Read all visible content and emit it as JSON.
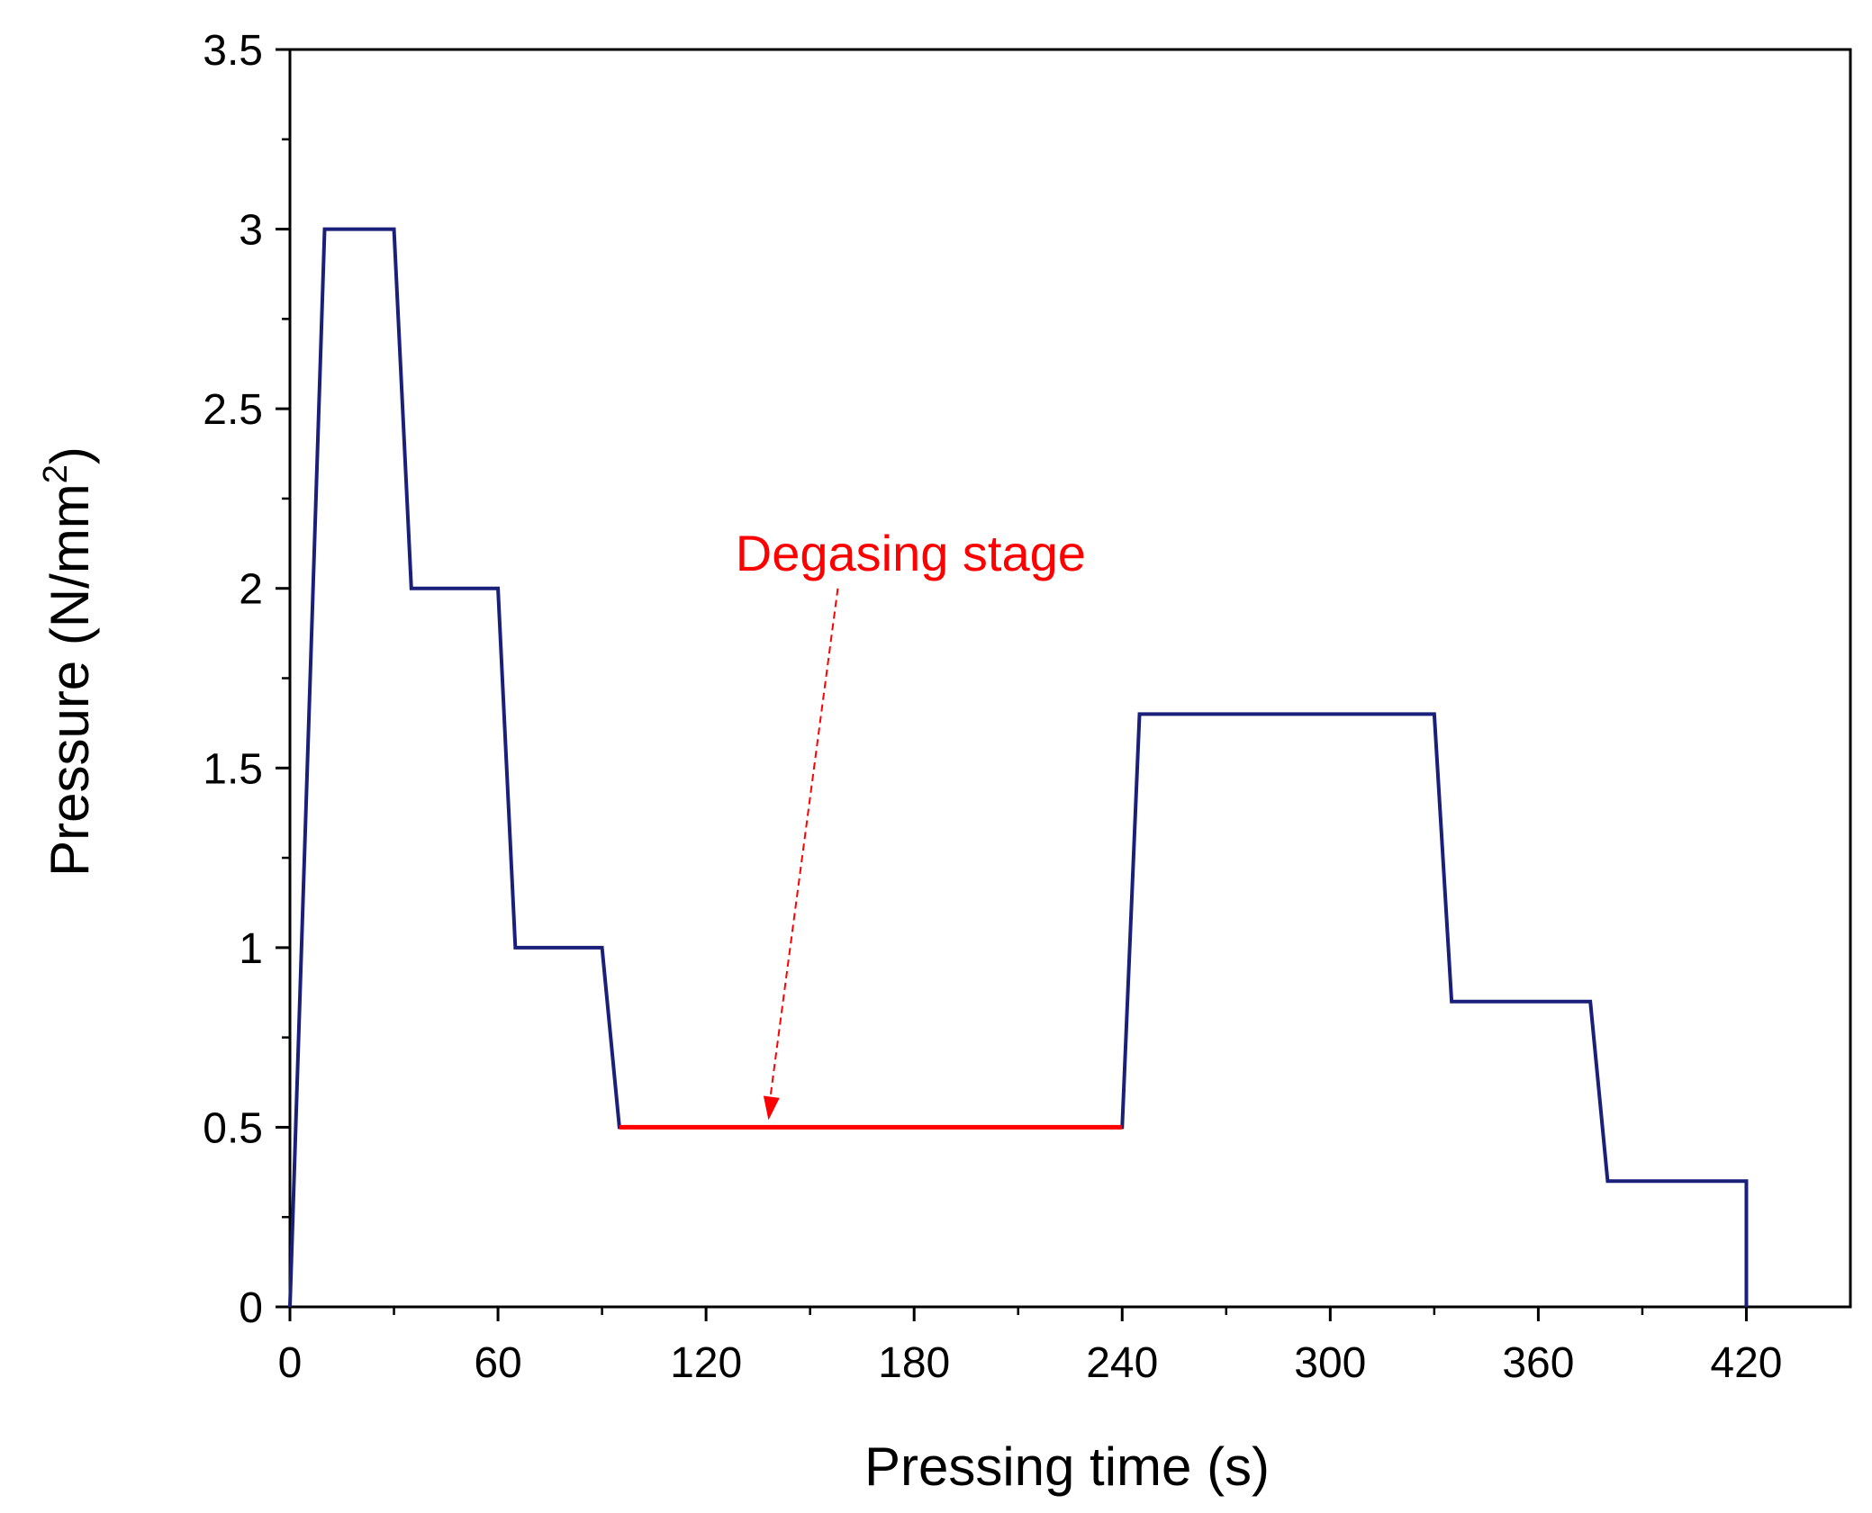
{
  "chart_data": {
    "type": "line",
    "title": "",
    "xlabel": "Pressing time (s)",
    "ylabel_main": "Pressure (N/mm",
    "ylabel_sup": "2",
    "ylabel_close": ")",
    "xlim": [
      0,
      450
    ],
    "ylim": [
      0,
      3.5
    ],
    "x_ticks": [
      0,
      60,
      120,
      180,
      240,
      300,
      360,
      420
    ],
    "x_tick_labels": [
      "0",
      "60",
      "120",
      "180",
      "240",
      "300",
      "360",
      "420"
    ],
    "y_ticks": [
      0,
      0.5,
      1,
      1.5,
      2,
      2.5,
      3,
      3.5
    ],
    "y_tick_labels": [
      "0",
      "0.5",
      "1",
      "1.5",
      "2",
      "2.5",
      "3",
      "3.5"
    ],
    "x_minor_step": 30,
    "y_minor_step": 0.25,
    "series": [
      {
        "name": "Pressure",
        "color": "#1a1f7a",
        "x": [
          0,
          10,
          30,
          35,
          60,
          65,
          90,
          95,
          240,
          245,
          330,
          335,
          375,
          380,
          420,
          420
        ],
        "y": [
          0,
          3,
          3,
          2,
          2,
          1,
          1,
          0.5,
          0.5,
          1.65,
          1.65,
          0.85,
          0.85,
          0.35,
          0.35,
          0
        ]
      },
      {
        "name": "Degasing stage segment",
        "color": "#ff0000",
        "x": [
          95,
          240
        ],
        "y": [
          0.5,
          0.5
        ]
      }
    ],
    "annotation": {
      "text": "Degasing stage",
      "color": "#ff0000",
      "text_x": 179,
      "text_y": 2.05,
      "arrow_from_x": 158,
      "arrow_from_y": 2.0,
      "arrow_to_x": 138,
      "arrow_to_y": 0.52
    },
    "colors": {
      "axis": "#000000",
      "series": "#1a1f7a",
      "highlight": "#ff0000"
    }
  }
}
